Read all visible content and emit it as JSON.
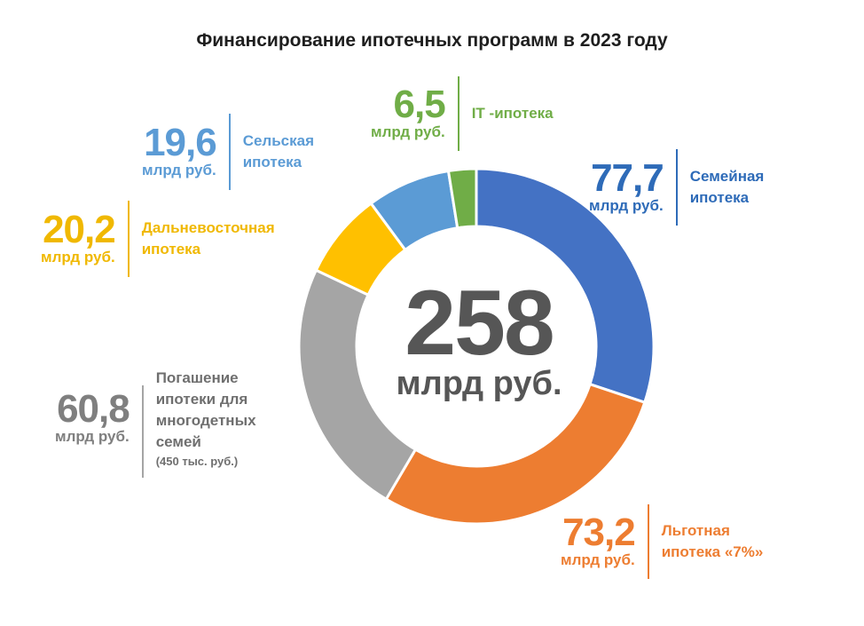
{
  "title": "Финансирование ипотечных программ в 2023 году",
  "center": {
    "value": "258",
    "unit": "млрд руб."
  },
  "chart_data": {
    "type": "donut",
    "title": "Финансирование ипотечных программ в 2023 году",
    "total": 258,
    "unit": "млрд руб.",
    "categories": [
      "Семейная ипотека",
      "Льготная ипотека «7%»",
      "Погашение ипотеки для многодетных семей",
      "Дальневосточная ипотека",
      "Сельская ипотека",
      "IT -ипотека"
    ],
    "values": [
      77.7,
      73.2,
      60.8,
      20.2,
      19.6,
      6.5
    ],
    "colors": [
      "#4472c4",
      "#ed7d31",
      "#a5a5a5",
      "#ffc000",
      "#5b9bd5",
      "#70ad47"
    ]
  },
  "labels": {
    "family": {
      "value": "77,7",
      "unit": "млрд руб.",
      "line1": "Семейная",
      "line2": "ипотека"
    },
    "lgot": {
      "value": "73,2",
      "unit": "млрд руб.",
      "line1": "Льготная",
      "line2": "ипотека «7%»"
    },
    "pogash": {
      "value": "60,8",
      "unit": "млрд руб.",
      "line1": "Погашение",
      "line2": "ипотеки для",
      "line3": "многодетных",
      "line4": "семей",
      "note": "(450 тыс. руб.)"
    },
    "dalnevost": {
      "value": "20,2",
      "unit": "млрд руб.",
      "line1": "Дальневосточная",
      "line2": "ипотека"
    },
    "selsk": {
      "value": "19,6",
      "unit": "млрд руб.",
      "line1": "Сельская",
      "line2": "ипотека"
    },
    "it": {
      "value": "6,5",
      "unit": "млрд руб.",
      "line1": "IT -ипотека"
    }
  }
}
